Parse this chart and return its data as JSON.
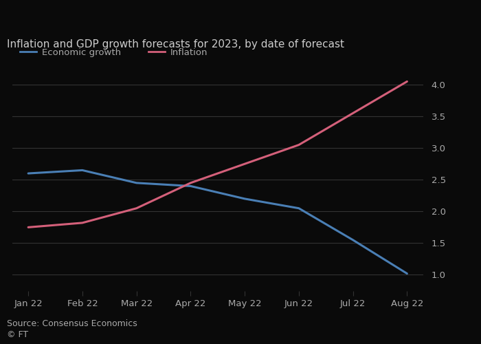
{
  "title": "Inflation and GDP growth forecasts for 2023, by date of forecast",
  "x_labels": [
    "Jan 22",
    "Feb 22",
    "Mar 22",
    "Apr 22",
    "May 22",
    "Jun 22",
    "Jul 22",
    "Aug 22"
  ],
  "economic_growth": [
    2.6,
    2.65,
    2.45,
    2.4,
    2.2,
    2.05,
    1.55,
    1.02
  ],
  "inflation": [
    1.75,
    1.82,
    2.05,
    2.45,
    2.75,
    3.05,
    3.55,
    4.05
  ],
  "growth_color": "#4a7fb5",
  "inflation_color": "#d4607a",
  "ylim": [
    0.75,
    4.25
  ],
  "yticks": [
    1.0,
    1.5,
    2.0,
    2.5,
    3.0,
    3.5,
    4.0
  ],
  "background_color": "#0a0a0a",
  "plot_bg_color": "#0a0a0a",
  "grid_color": "#333333",
  "text_color": "#aaaaaa",
  "title_color": "#cccccc",
  "source_text": "Source: Consensus Economics",
  "ft_text": "© FT",
  "legend_economic": "Economic growth",
  "legend_inflation": "Inflation"
}
